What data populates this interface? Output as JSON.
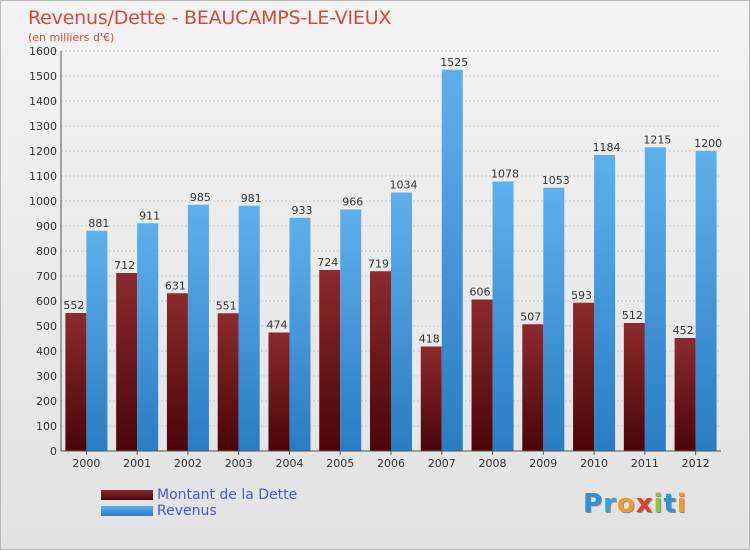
{
  "title": "Revenus/Dette - BEAUCAMPS-LE-VIEUX",
  "subtitle": "(en milliers d'€)",
  "colors": {
    "title": "#d44a3a",
    "debt": "#7a1418",
    "revenue": "#4fa3e0",
    "legend_text": "#4a56d8"
  },
  "legend": {
    "debt_label": "Montant de la Dette",
    "revenue_label": "Revenus"
  },
  "logo": {
    "text": "Proxiti"
  },
  "chart_data": {
    "type": "bar",
    "categories": [
      "2000",
      "2001",
      "2002",
      "2003",
      "2004",
      "2005",
      "2006",
      "2007",
      "2008",
      "2009",
      "2010",
      "2011",
      "2012"
    ],
    "series": [
      {
        "name": "Montant de la Dette",
        "values": [
          552,
          712,
          631,
          551,
          474,
          724,
          719,
          418,
          606,
          507,
          593,
          512,
          452
        ]
      },
      {
        "name": "Revenus",
        "values": [
          881,
          911,
          985,
          981,
          933,
          966,
          1034,
          1525,
          1078,
          1053,
          1184,
          1215,
          1200
        ]
      }
    ],
    "ylim": [
      0,
      1600
    ],
    "yticks": [
      0,
      100,
      200,
      300,
      400,
      500,
      600,
      700,
      800,
      900,
      1000,
      1100,
      1200,
      1300,
      1400,
      1500,
      1600
    ],
    "grid": true,
    "legend_position": "bottom-left"
  }
}
